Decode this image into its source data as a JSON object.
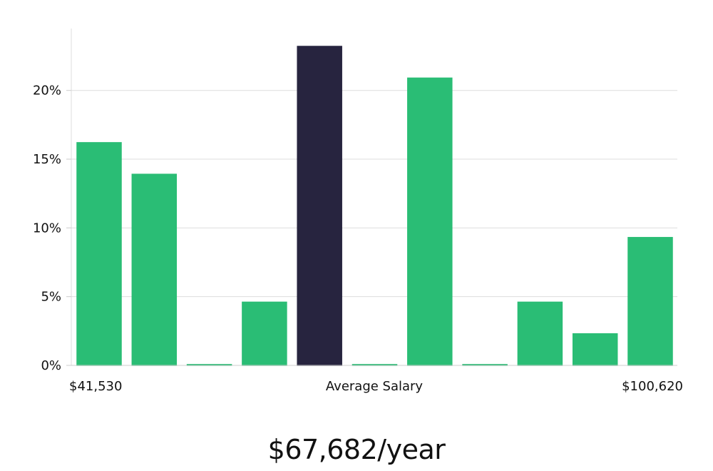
{
  "chart_data": {
    "type": "bar",
    "ylabel": "",
    "ylim": [
      0,
      24.5
    ],
    "yticks": [
      0,
      5,
      10,
      15,
      20
    ],
    "ytick_labels": [
      "0%",
      "5%",
      "10%",
      "15%",
      "20%"
    ],
    "values": [
      16.2,
      13.9,
      0,
      4.6,
      23.2,
      0,
      20.9,
      0,
      4.6,
      2.3,
      9.3
    ],
    "highlight_index": 4,
    "grid": true,
    "x_min_label": "$41,530",
    "x_center_label": "Average Salary",
    "x_max_label": "$100,620"
  },
  "colors": {
    "bar": "#2abd75",
    "highlight": "#27243f",
    "grid": "#dddddd",
    "axis": "#cccccc"
  },
  "summary": {
    "salary": "$67,682/year"
  }
}
